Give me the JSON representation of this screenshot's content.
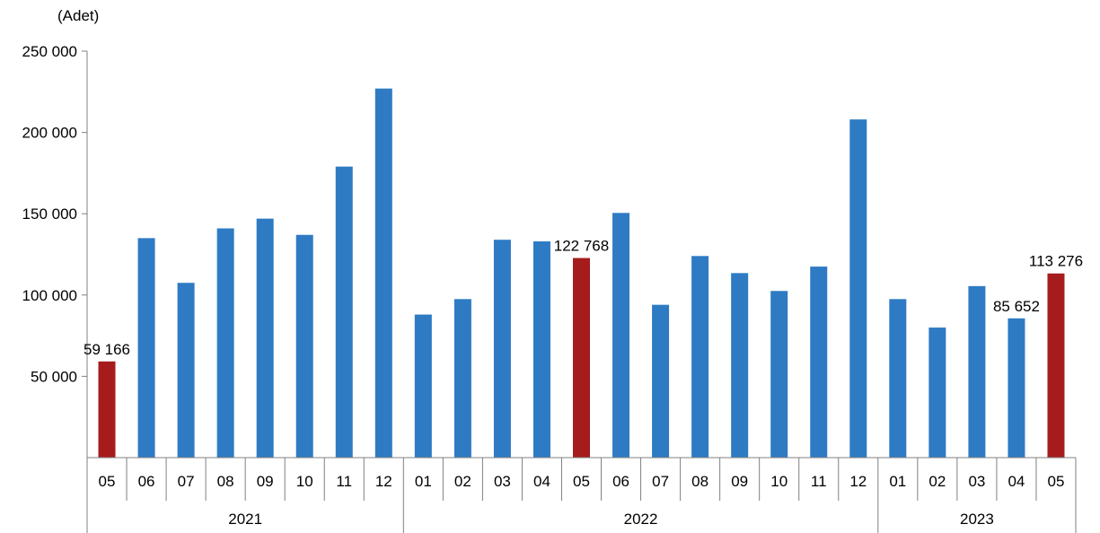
{
  "chart_data": {
    "type": "bar",
    "unit_label": "(Adet)",
    "ylim": [
      0,
      250000
    ],
    "y_ticks": [
      "250 000",
      "200 000",
      "150 000",
      "100 000",
      "50 000"
    ],
    "y_tick_values": [
      250000,
      200000,
      150000,
      100000,
      50000
    ],
    "categories": [
      "05",
      "06",
      "07",
      "08",
      "09",
      "10",
      "11",
      "12",
      "01",
      "02",
      "03",
      "04",
      "05",
      "06",
      "07",
      "08",
      "09",
      "10",
      "11",
      "12",
      "01",
      "02",
      "03",
      "04",
      "05"
    ],
    "year_groups": [
      {
        "label": "2021",
        "start": 0,
        "count": 8
      },
      {
        "label": "2022",
        "start": 8,
        "count": 12
      },
      {
        "label": "2023",
        "start": 20,
        "count": 5
      }
    ],
    "values": [
      59166,
      135000,
      107500,
      141000,
      147000,
      137000,
      179000,
      227000,
      88000,
      97500,
      134000,
      133000,
      122768,
      150500,
      94000,
      124000,
      113500,
      102500,
      117500,
      208000,
      97500,
      80000,
      105500,
      85652,
      113276
    ],
    "highlight_indices": [
      0,
      12,
      24
    ],
    "colors": {
      "default": "#2E7BC4",
      "highlight": "#A61C1C",
      "axis": "#808080"
    },
    "data_labels": [
      {
        "index": 0,
        "text": "59 166"
      },
      {
        "index": 12,
        "text": "122 768"
      },
      {
        "index": 23,
        "text": "85 652"
      },
      {
        "index": 24,
        "text": "113 276"
      }
    ],
    "grid": false,
    "legend": "none"
  }
}
